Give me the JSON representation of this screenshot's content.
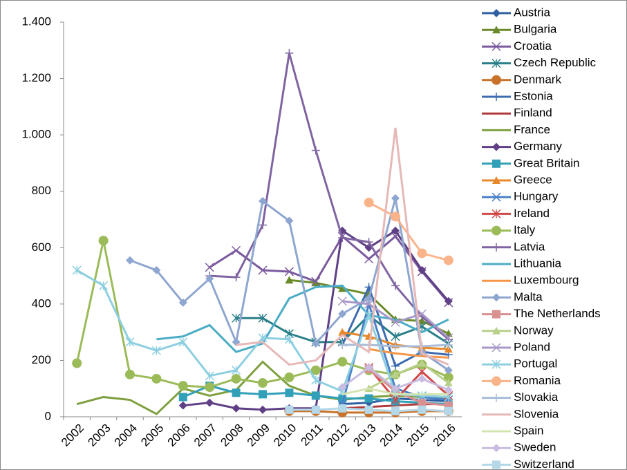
{
  "chart_data": {
    "type": "line",
    "categories": [
      "2002",
      "2003",
      "2004",
      "2005",
      "2006",
      "2007",
      "2008",
      "2009",
      "2010",
      "2011",
      "2012",
      "2013",
      "2014",
      "2015",
      "2016"
    ],
    "ylim": [
      0,
      1400
    ],
    "yticks": [
      0,
      200,
      400,
      600,
      800,
      {
        "value": 1000,
        "label": "1.000"
      },
      {
        "value": 1200,
        "label": "1.200"
      },
      {
        "value": 1400,
        "label": "1.400"
      }
    ],
    "grid": false,
    "legend": "right",
    "series": [
      {
        "name": "Austria",
        "color": "#2e5fa0",
        "marker": "diamond",
        "values": [
          null,
          null,
          null,
          null,
          null,
          null,
          null,
          null,
          null,
          null,
          45,
          50,
          65,
          60,
          55
        ]
      },
      {
        "name": "Bulgaria",
        "color": "#6a8a2a",
        "marker": "triangle",
        "values": [
          null,
          null,
          null,
          null,
          null,
          null,
          null,
          null,
          485,
          475,
          455,
          435,
          345,
          340,
          295
        ]
      },
      {
        "name": "Croatia",
        "color": "#7b5a9e",
        "marker": "x",
        "values": [
          null,
          null,
          null,
          null,
          null,
          530,
          590,
          520,
          515,
          480,
          640,
          560,
          640,
          515,
          405
        ]
      },
      {
        "name": "Czech Republic",
        "color": "#2a7f88",
        "marker": "asterisk",
        "values": [
          null,
          null,
          null,
          null,
          null,
          null,
          350,
          350,
          295,
          265,
          265,
          360,
          285,
          320,
          260
        ]
      },
      {
        "name": "Denmark",
        "color": "#c8722a",
        "marker": "circle",
        "values": [
          null,
          null,
          null,
          null,
          null,
          null,
          null,
          null,
          20,
          20,
          15,
          15,
          15,
          20,
          20
        ]
      },
      {
        "name": "Estonia",
        "color": "#3d6cb0",
        "marker": "plus",
        "values": [
          null,
          null,
          null,
          null,
          null,
          null,
          null,
          null,
          null,
          null,
          255,
          460,
          180,
          230,
          220
        ]
      },
      {
        "name": "Finland",
        "color": "#b03a3a",
        "marker": "none",
        "values": [
          null,
          null,
          null,
          null,
          null,
          null,
          null,
          null,
          null,
          null,
          30,
          35,
          40,
          45,
          45
        ]
      },
      {
        "name": "France",
        "color": "#7fa040",
        "marker": "none",
        "values": [
          45,
          70,
          60,
          10,
          100,
          75,
          95,
          195,
          110,
          75,
          60,
          70,
          75,
          70,
          65
        ]
      },
      {
        "name": "Germany",
        "color": "#5f3f85",
        "marker": "diamond",
        "values": [
          null,
          null,
          null,
          null,
          40,
          50,
          30,
          25,
          30,
          30,
          660,
          600,
          660,
          520,
          410
        ]
      },
      {
        "name": "Great Britain",
        "color": "#32a0b8",
        "marker": "square",
        "values": [
          null,
          null,
          null,
          null,
          70,
          110,
          85,
          80,
          85,
          75,
          65,
          65,
          55,
          50,
          45
        ]
      },
      {
        "name": "Greece",
        "color": "#e8882a",
        "marker": "triangle",
        "values": [
          null,
          null,
          null,
          null,
          null,
          null,
          null,
          null,
          null,
          null,
          300,
          285,
          255,
          245,
          240
        ]
      },
      {
        "name": "Hungary",
        "color": "#4a80c8",
        "marker": "x",
        "values": [
          null,
          null,
          null,
          null,
          null,
          null,
          null,
          null,
          null,
          null,
          45,
          400,
          100,
          70,
          60
        ]
      },
      {
        "name": "Ireland",
        "color": "#d04848",
        "marker": "asterisk",
        "values": [
          null,
          null,
          null,
          null,
          null,
          null,
          null,
          null,
          null,
          null,
          null,
          175,
          60,
          160,
          75
        ]
      },
      {
        "name": "Italy",
        "color": "#9bbb59",
        "marker": "circle",
        "values": [
          190,
          625,
          150,
          135,
          110,
          105,
          135,
          120,
          140,
          165,
          195,
          165,
          150,
          185,
          140
        ]
      },
      {
        "name": "Latvia",
        "color": "#8064a2",
        "marker": "plus",
        "values": [
          null,
          null,
          null,
          null,
          null,
          500,
          495,
          680,
          1290,
          945,
          635,
          620,
          465,
          355,
          275
        ]
      },
      {
        "name": "Lithuania",
        "color": "#4bacc6",
        "marker": "none",
        "values": [
          null,
          null,
          null,
          275,
          285,
          325,
          230,
          260,
          420,
          460,
          465,
          360,
          345,
          300,
          345
        ]
      },
      {
        "name": "Luxembourg",
        "color": "#f79646",
        "marker": "none",
        "values": [
          null,
          null,
          null,
          null,
          null,
          null,
          null,
          null,
          null,
          null,
          null,
          240,
          225,
          215,
          210
        ]
      },
      {
        "name": "Malta",
        "color": "#8ea6d0",
        "marker": "diamond",
        "values": [
          null,
          null,
          555,
          520,
          405,
          490,
          265,
          765,
          695,
          260,
          365,
          420,
          775,
          230,
          165
        ]
      },
      {
        "name": "The Netherlands",
        "color": "#d99090",
        "marker": "square",
        "values": [
          null,
          null,
          null,
          null,
          null,
          null,
          null,
          null,
          null,
          null,
          null,
          170,
          90,
          50,
          40
        ]
      },
      {
        "name": "Norway",
        "color": "#b8d08a",
        "marker": "triangle",
        "values": [
          null,
          null,
          null,
          null,
          null,
          null,
          null,
          null,
          null,
          null,
          null,
          100,
          150,
          190,
          120
        ]
      },
      {
        "name": "Poland",
        "color": "#a898c8",
        "marker": "x",
        "values": [
          null,
          null,
          null,
          null,
          null,
          null,
          null,
          null,
          null,
          null,
          410,
          400,
          335,
          365,
          280
        ]
      },
      {
        "name": "Portugal",
        "color": "#8ccfe0",
        "marker": "asterisk",
        "values": [
          520,
          465,
          265,
          235,
          265,
          145,
          165,
          280,
          275,
          130,
          90,
          360,
          80,
          75,
          70
        ]
      },
      {
        "name": "Romania",
        "color": "#f9b48a",
        "marker": "circle",
        "values": [
          null,
          null,
          null,
          null,
          null,
          null,
          null,
          null,
          null,
          null,
          null,
          760,
          710,
          580,
          555
        ]
      },
      {
        "name": "Slovakia",
        "color": "#a8bcd8",
        "marker": "plus",
        "values": [
          null,
          null,
          null,
          null,
          null,
          null,
          null,
          null,
          null,
          null,
          255,
          255,
          250,
          250,
          255
        ]
      },
      {
        "name": "Slovenia",
        "color": "#e6b8b8",
        "marker": "none",
        "values": [
          null,
          null,
          null,
          null,
          null,
          null,
          255,
          265,
          185,
          200,
          290,
          230,
          1025,
          225,
          185
        ]
      },
      {
        "name": "Spain",
        "color": "#d4e4b0",
        "marker": "none",
        "values": [
          null,
          null,
          null,
          null,
          null,
          null,
          null,
          null,
          null,
          null,
          80,
          100,
          80,
          80,
          80
        ]
      },
      {
        "name": "Sweden",
        "color": "#c8bce0",
        "marker": "diamond",
        "values": [
          null,
          null,
          null,
          null,
          null,
          null,
          null,
          null,
          null,
          null,
          105,
          175,
          100,
          135,
          95
        ]
      },
      {
        "name": "Switzerland",
        "color": "#b4d8e8",
        "marker": "square",
        "values": [
          null,
          null,
          null,
          null,
          null,
          null,
          null,
          null,
          25,
          25,
          30,
          25,
          20,
          25,
          20
        ]
      }
    ]
  }
}
